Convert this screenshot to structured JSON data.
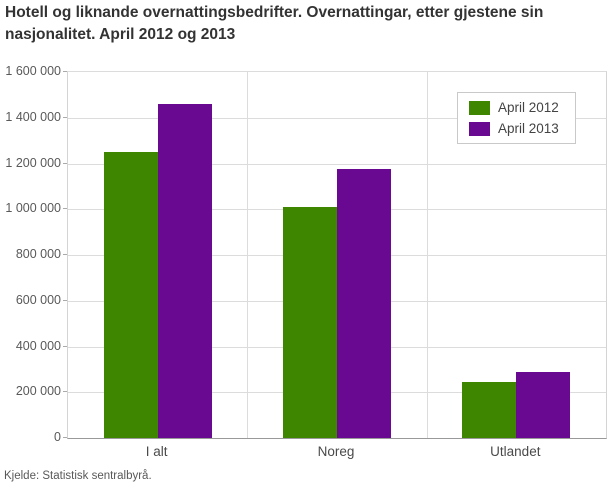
{
  "title": "Hotell og liknande overnattingsbedrifter. Overnattingar, etter gjestene sin nasjonalitet. April 2012 og 2013",
  "source": "Kjelde: Statistisk sentralbyrå.",
  "legend": {
    "items": [
      {
        "label": "April 2012",
        "color": "#3e8500"
      },
      {
        "label": "April 2013",
        "color": "#690890"
      }
    ]
  },
  "chart_data": {
    "type": "bar",
    "title": "Hotell og liknande overnattingsbedrifter. Overnattingar, etter gjestene sin nasjonalitet. April 2012 og 2013",
    "categories": [
      "I alt",
      "Noreg",
      "Utlandet"
    ],
    "series": [
      {
        "name": "April 2012",
        "color": "#3e8500",
        "values": [
          1250000,
          1010000,
          245000
        ]
      },
      {
        "name": "April 2013",
        "color": "#690890",
        "values": [
          1460000,
          1175000,
          290000
        ]
      }
    ],
    "xlabel": "",
    "ylabel": "",
    "ylim": [
      0,
      1600000
    ],
    "yticks": [
      {
        "value": 0,
        "label": "0"
      },
      {
        "value": 200000,
        "label": "200 000"
      },
      {
        "value": 400000,
        "label": "400 000"
      },
      {
        "value": 600000,
        "label": "600 000"
      },
      {
        "value": 800000,
        "label": "800 000"
      },
      {
        "value": 1000000,
        "label": "1 000 000"
      },
      {
        "value": 1200000,
        "label": "1 200 000"
      },
      {
        "value": 1400000,
        "label": "1 400 000"
      },
      {
        "value": 1600000,
        "label": "1 600 000"
      }
    ],
    "grid": true,
    "legend_position": "top-right",
    "source": "Kjelde: Statistisk sentralbyrå."
  }
}
